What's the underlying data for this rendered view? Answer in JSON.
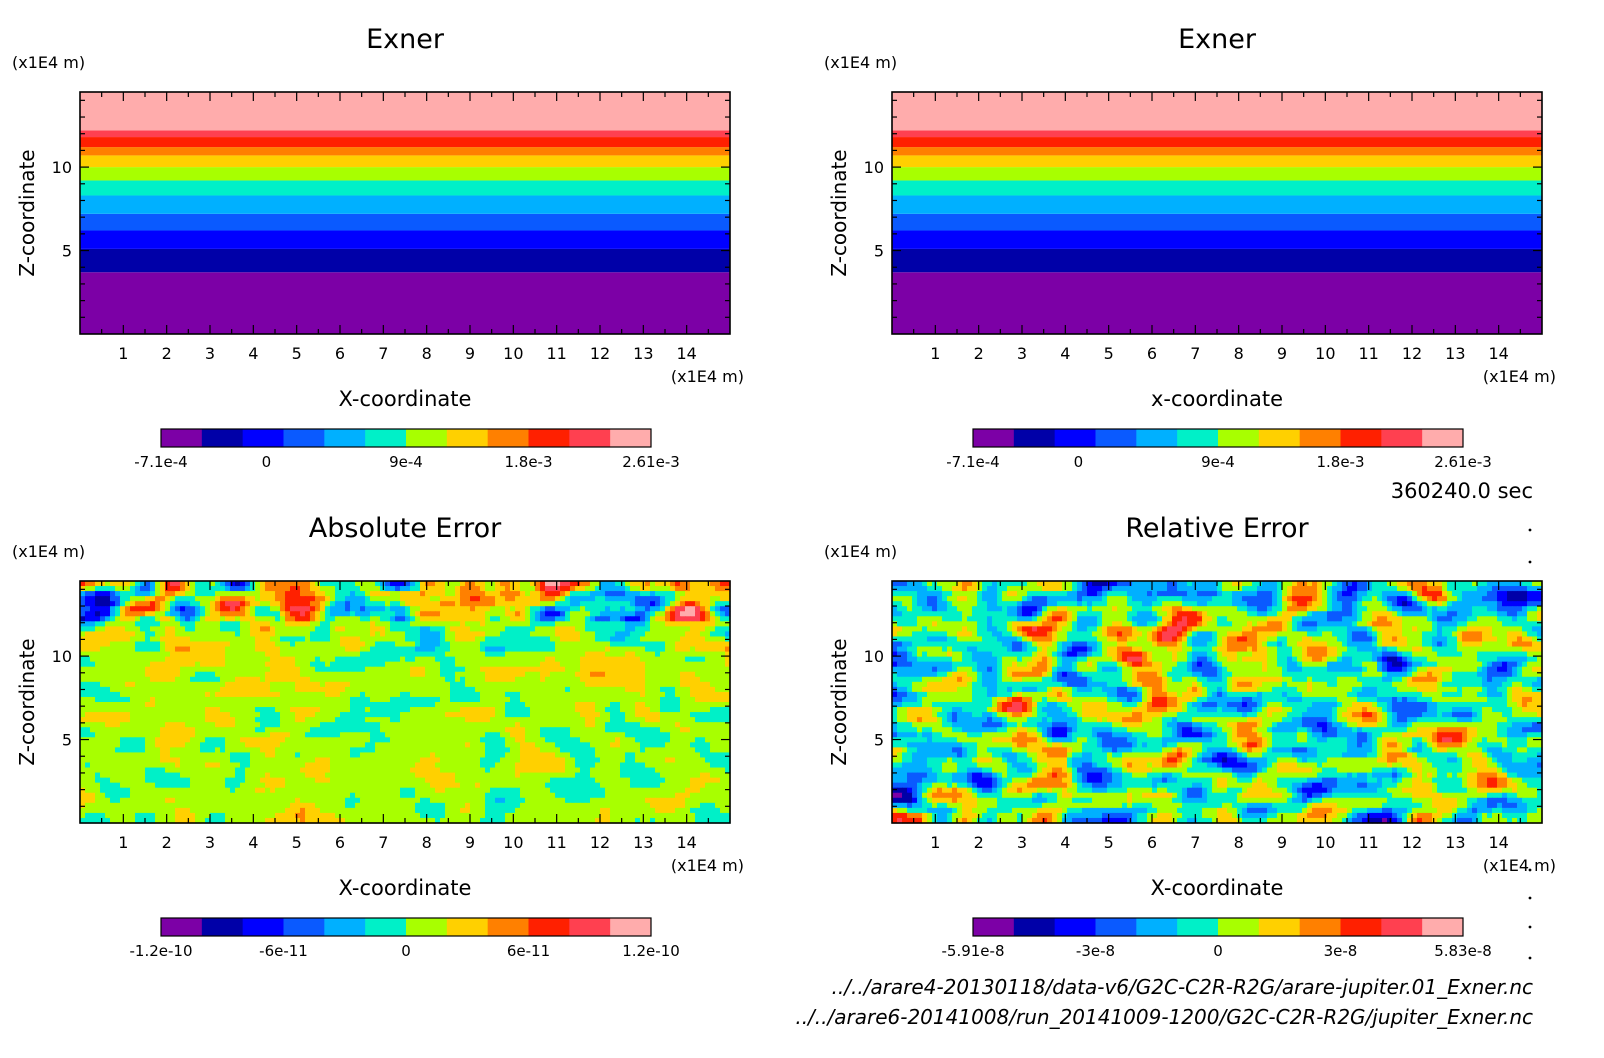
{
  "chart_data": [
    {
      "type": "heatmap",
      "title": "Exner",
      "xlabel": "X-coordinate",
      "ylabel": "Z-coordinate",
      "x_unit": "(x1E4 m)",
      "y_unit": "(x1E4 m)",
      "xlim": [
        0,
        15
      ],
      "ylim": [
        0,
        14.5
      ],
      "xticks": [
        "1",
        "2",
        "3",
        "4",
        "5",
        "6",
        "7",
        "8",
        "9",
        "10",
        "11",
        "12",
        "13",
        "14"
      ],
      "yticks": [
        "5",
        "10"
      ],
      "field": "horizontal_bands",
      "colorbar": {
        "ticks": [
          "-7.1e-4",
          "0",
          "9e-4",
          "1.8e-3",
          "2.61e-3"
        ],
        "tick_positions": [
          0,
          0.215,
          0.5,
          0.75,
          1.0
        ],
        "colors": [
          "#7c00a6",
          "#0000a8",
          "#0000ff",
          "#0a5aff",
          "#00b0ff",
          "#00f0c8",
          "#a8ff00",
          "#ffd000",
          "#ff8000",
          "#ff2000",
          "#ff4050",
          "#ffacac"
        ]
      },
      "bands": [
        {
          "from": 0.0,
          "to": 3.7,
          "color": "#7c00a6"
        },
        {
          "from": 3.7,
          "to": 5.1,
          "color": "#0000a8"
        },
        {
          "from": 5.1,
          "to": 6.2,
          "color": "#0000ff"
        },
        {
          "from": 6.2,
          "to": 7.2,
          "color": "#0a5aff"
        },
        {
          "from": 7.2,
          "to": 8.3,
          "color": "#00b0ff"
        },
        {
          "from": 8.3,
          "to": 9.2,
          "color": "#00f0c8"
        },
        {
          "from": 9.2,
          "to": 10.0,
          "color": "#a8ff00"
        },
        {
          "from": 10.0,
          "to": 10.7,
          "color": "#ffd000"
        },
        {
          "from": 10.7,
          "to": 11.2,
          "color": "#ff8000"
        },
        {
          "from": 11.2,
          "to": 11.8,
          "color": "#ff2000"
        },
        {
          "from": 11.8,
          "to": 12.2,
          "color": "#ff4050"
        },
        {
          "from": 12.2,
          "to": 14.5,
          "color": "#ffacac"
        }
      ]
    },
    {
      "type": "heatmap",
      "title": "Exner",
      "xlabel": "x-coordinate",
      "ylabel": "Z-coordinate",
      "x_unit": "(x1E4 m)",
      "y_unit": "(x1E4 m)",
      "xlim": [
        0,
        15
      ],
      "ylim": [
        0,
        14.5
      ],
      "xticks": [
        "1",
        "2",
        "3",
        "4",
        "5",
        "6",
        "7",
        "8",
        "9",
        "10",
        "11",
        "12",
        "13",
        "14"
      ],
      "yticks": [
        "5",
        "10"
      ],
      "field": "horizontal_bands",
      "colorbar": {
        "ticks": [
          "-7.1e-4",
          "0",
          "9e-4",
          "1.8e-3",
          "2.61e-3"
        ],
        "tick_positions": [
          0,
          0.215,
          0.5,
          0.75,
          1.0
        ],
        "colors": [
          "#7c00a6",
          "#0000a8",
          "#0000ff",
          "#0a5aff",
          "#00b0ff",
          "#00f0c8",
          "#a8ff00",
          "#ffd000",
          "#ff8000",
          "#ff2000",
          "#ff4050",
          "#ffacac"
        ]
      },
      "bands": [
        {
          "from": 0.0,
          "to": 3.7,
          "color": "#7c00a6"
        },
        {
          "from": 3.7,
          "to": 5.1,
          "color": "#0000a8"
        },
        {
          "from": 5.1,
          "to": 6.2,
          "color": "#0000ff"
        },
        {
          "from": 6.2,
          "to": 7.2,
          "color": "#0a5aff"
        },
        {
          "from": 7.2,
          "to": 8.3,
          "color": "#00b0ff"
        },
        {
          "from": 8.3,
          "to": 9.2,
          "color": "#00f0c8"
        },
        {
          "from": 9.2,
          "to": 10.0,
          "color": "#a8ff00"
        },
        {
          "from": 10.0,
          "to": 10.7,
          "color": "#ffd000"
        },
        {
          "from": 10.7,
          "to": 11.2,
          "color": "#ff8000"
        },
        {
          "from": 11.2,
          "to": 11.8,
          "color": "#ff2000"
        },
        {
          "from": 11.8,
          "to": 12.2,
          "color": "#ff4050"
        },
        {
          "from": 12.2,
          "to": 14.5,
          "color": "#ffacac"
        }
      ]
    },
    {
      "type": "heatmap",
      "title": "Absolute Error",
      "xlabel": "X-coordinate",
      "ylabel": "Z-coordinate",
      "x_unit": "(x1E4 m)",
      "y_unit": "(x1E4 m)",
      "xlim": [
        0,
        15
      ],
      "ylim": [
        0,
        14.5
      ],
      "xticks": [
        "1",
        "2",
        "3",
        "4",
        "5",
        "6",
        "7",
        "8",
        "9",
        "10",
        "11",
        "12",
        "13",
        "14"
      ],
      "yticks": [
        "5",
        "10"
      ],
      "field": "noise_low_amplitude_below_12_high_above",
      "colorbar": {
        "ticks": [
          "-1.2e-10",
          "-6e-11",
          "0",
          "6e-11",
          "1.2e-10"
        ],
        "tick_positions": [
          0,
          0.25,
          0.5,
          0.75,
          1.0
        ],
        "colors": [
          "#7c00a6",
          "#0000a8",
          "#0000ff",
          "#0a5aff",
          "#00b0ff",
          "#00f0c8",
          "#a8ff00",
          "#ffd000",
          "#ff8000",
          "#ff2000",
          "#ff4050",
          "#ffacac"
        ]
      }
    },
    {
      "type": "heatmap",
      "title": "Relative Error",
      "xlabel": "X-coordinate",
      "ylabel": "Z-coordinate",
      "x_unit": "(x1E4 m)",
      "y_unit": "(x1E4 m)",
      "xlim": [
        0,
        15
      ],
      "ylim": [
        0,
        14.5
      ],
      "xticks": [
        "1",
        "2",
        "3",
        "4",
        "5",
        "6",
        "7",
        "8",
        "9",
        "10",
        "11",
        "12",
        "13",
        "14"
      ],
      "yticks": [
        "5",
        "10"
      ],
      "field": "noise_uniform_full_range",
      "colorbar": {
        "ticks": [
          "-5.91e-8",
          "-3e-8",
          "0",
          "3e-8",
          "5.83e-8"
        ],
        "tick_positions": [
          0,
          0.25,
          0.5,
          0.75,
          1.0
        ],
        "colors": [
          "#7c00a6",
          "#0000a8",
          "#0000ff",
          "#0a5aff",
          "#00b0ff",
          "#00f0c8",
          "#a8ff00",
          "#ffd000",
          "#ff8000",
          "#ff2000",
          "#ff4050",
          "#ffacac"
        ]
      }
    }
  ],
  "time_label": "360240.0 sec",
  "file1": "../../arare4-20130118/data-v6/G2C-C2R-R2G/arare-jupiter.01_Exner.nc",
  "file2": "../../arare6-20141008/run_20141009-1200/G2C-C2R-R2G/jupiter_Exner.nc"
}
